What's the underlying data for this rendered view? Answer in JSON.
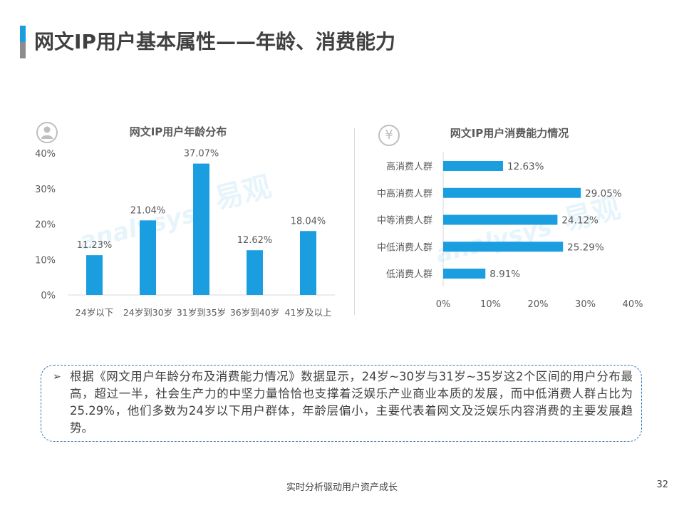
{
  "page": {
    "title": "网文IP用户基本属性——年龄、消费能力",
    "footer": "实时分析驱动用户资产成长",
    "page_number": "32"
  },
  "colors": {
    "bar": "#1a9ee0",
    "axis_text": "#595959",
    "accent": "#1a9ee0"
  },
  "icons": {
    "age_chart": "user-icon",
    "spend_chart": "yen-icon"
  },
  "watermark": {
    "brand": "易观",
    "latin": "analysys",
    "slogan": "实时分析驱动用户资产成长"
  },
  "summary": {
    "arrow": "➢",
    "text": "根据《网文用户年龄分布及消费能力情况》数据显示，24岁~30岁与31岁~35岁这2个区间的用户分布最高，超过一半，社会生产力的中坚力量恰恰也支撑着泛娱乐产业商业本质的发展，而中低消费人群占比为25.29%，他们多数为24岁以下用户群体，年龄层偏小，主要代表着网文及泛娱乐内容消费的主要发展趋势。"
  },
  "chart_data": [
    {
      "type": "bar",
      "title": "网文IP用户年龄分布",
      "categories": [
        "24岁以下",
        "24岁到30岁",
        "31岁到35岁",
        "36岁到40岁",
        "41岁及以上"
      ],
      "values": [
        11.23,
        21.04,
        37.07,
        12.62,
        18.04
      ],
      "value_labels": [
        "11.23%",
        "21.04%",
        "37.07%",
        "12.62%",
        "18.04%"
      ],
      "ylim": [
        0,
        40
      ],
      "yticks": [
        "0%",
        "10%",
        "20%",
        "30%",
        "40%"
      ],
      "grid": false,
      "legend": "none"
    },
    {
      "type": "bar",
      "orientation": "horizontal",
      "title": "网文IP用户消费能力情况",
      "categories": [
        "高消费人群",
        "中高消费人群",
        "中等消费人群",
        "中低消费人群",
        "低消费人群"
      ],
      "values": [
        12.63,
        29.05,
        24.12,
        25.29,
        8.91
      ],
      "value_labels": [
        "12.63%",
        "29.05%",
        "24.12%",
        "25.29%",
        "8.91%"
      ],
      "xlim": [
        0,
        40
      ],
      "xticks": [
        "0%",
        "10%",
        "20%",
        "30%",
        "40%"
      ],
      "grid": false,
      "legend": "none"
    }
  ]
}
